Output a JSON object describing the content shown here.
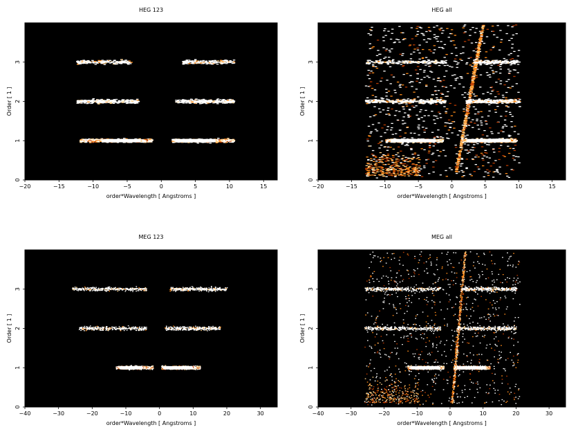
{
  "chart_data": [
    {
      "type": "heatmap",
      "title": "HEG 123",
      "xlabel": "order*Wavelength [ Angstroms ]",
      "ylabel": "Order [ 1 ]",
      "xlim": [
        -20,
        17
      ],
      "ylim": [
        0,
        4
      ],
      "xticks": [
        -20,
        -15,
        -10,
        -5,
        0,
        5,
        10,
        15
      ],
      "yticks": [
        0,
        1,
        2,
        3
      ],
      "colormap": [
        "#000000",
        "#5a0a00",
        "#b83a00",
        "#ff8c1a",
        "#ffd38a",
        "#ffffff"
      ],
      "bands": [
        {
          "order": 1,
          "x_range": [
            -12,
            -1.5
          ],
          "density": "high",
          "peak": [
            -8.5,
            -3
          ]
        },
        {
          "order": 1,
          "x_range": [
            1.5,
            10.5
          ],
          "density": "high",
          "peak": [
            2,
            8
          ]
        },
        {
          "order": 2,
          "x_range": [
            -12.5,
            -3.5
          ],
          "density": "medium"
        },
        {
          "order": 2,
          "x_range": [
            2,
            10.5
          ],
          "density": "medium"
        },
        {
          "order": 3,
          "x_range": [
            -12.5,
            -4.5
          ],
          "density": "low"
        },
        {
          "order": 3,
          "x_range": [
            3,
            10.5
          ],
          "density": "low"
        }
      ]
    },
    {
      "type": "heatmap",
      "title": "HEG all",
      "xlabel": "order*Wavelength [ Angstroms ]",
      "ylabel": "Order [ 1 ]",
      "xlim": [
        -20,
        17
      ],
      "ylim": [
        0,
        4
      ],
      "xticks": [
        -20,
        -15,
        -10,
        -5,
        0,
        5,
        10,
        15
      ],
      "yticks": [
        0,
        1,
        2,
        3
      ],
      "colormap": [
        "#000000",
        "#5a0a00",
        "#b83a00",
        "#ff8c1a",
        "#ffd38a",
        "#ffffff"
      ],
      "bands": [
        {
          "order": 1,
          "x_range": [
            -10,
            -1.5
          ],
          "density": "high"
        },
        {
          "order": 1,
          "x_range": [
            1.5,
            9.5
          ],
          "density": "high"
        },
        {
          "order": 2,
          "x_range": [
            -13,
            -1
          ],
          "density": "medium"
        },
        {
          "order": 2,
          "x_range": [
            2,
            10
          ],
          "density": "medium"
        },
        {
          "order": 3,
          "x_range": [
            -13,
            -1
          ],
          "density": "low"
        },
        {
          "order": 3,
          "x_range": [
            3,
            10
          ],
          "density": "low"
        }
      ],
      "background_region": {
        "x_range": [
          -13,
          10
        ],
        "density": "sparse"
      },
      "streak": {
        "from": [
          0.5,
          0.2
        ],
        "to": [
          4.5,
          3.95
        ]
      }
    },
    {
      "type": "heatmap",
      "title": "MEG 123",
      "xlabel": "order*Wavelength [ Angstroms ]",
      "ylabel": "Order [ 1 ]",
      "xlim": [
        -40,
        35
      ],
      "ylim": [
        0,
        4
      ],
      "xticks": [
        -40,
        -30,
        -20,
        -10,
        0,
        10,
        20,
        30
      ],
      "yticks": [
        0,
        1,
        2,
        3
      ],
      "colormap": [
        "#000000",
        "#5a0a00",
        "#b83a00",
        "#ff8c1a",
        "#ffd38a",
        "#ffffff"
      ],
      "bands": [
        {
          "order": 1,
          "x_range": [
            -13,
            -2
          ],
          "density": "high",
          "peak": [
            -12,
            -5
          ]
        },
        {
          "order": 1,
          "x_range": [
            0.5,
            12
          ],
          "density": "high",
          "peak": [
            1,
            10
          ]
        },
        {
          "order": 2,
          "x_range": [
            -24,
            -4
          ],
          "density": "medium"
        },
        {
          "order": 2,
          "x_range": [
            1.5,
            18
          ],
          "density": "medium"
        },
        {
          "order": 3,
          "x_range": [
            -26,
            -4
          ],
          "density": "medium"
        },
        {
          "order": 3,
          "x_range": [
            3,
            20
          ],
          "density": "medium"
        }
      ]
    },
    {
      "type": "heatmap",
      "title": "MEG all",
      "xlabel": "order*Wavelength [ Angstroms ]",
      "ylabel": "Order [ 1 ]",
      "xlim": [
        -40,
        35
      ],
      "ylim": [
        0,
        4
      ],
      "xticks": [
        -40,
        -30,
        -20,
        -10,
        0,
        10,
        20,
        30
      ],
      "yticks": [
        0,
        1,
        2,
        3
      ],
      "colormap": [
        "#000000",
        "#5a0a00",
        "#b83a00",
        "#ff8c1a",
        "#ffd38a",
        "#ffffff"
      ],
      "bands": [
        {
          "order": 1,
          "x_range": [
            -13,
            -2
          ],
          "density": "high"
        },
        {
          "order": 1,
          "x_range": [
            1,
            12
          ],
          "density": "high"
        },
        {
          "order": 2,
          "x_range": [
            -26,
            -3
          ],
          "density": "medium"
        },
        {
          "order": 2,
          "x_range": [
            2,
            20
          ],
          "density": "medium"
        },
        {
          "order": 3,
          "x_range": [
            -26,
            -3
          ],
          "density": "medium"
        },
        {
          "order": 3,
          "x_range": [
            3,
            20
          ],
          "density": "medium"
        }
      ],
      "background_region": {
        "x_range": [
          -26,
          21
        ],
        "density": "sparse"
      },
      "streak": {
        "from": [
          0.5,
          0.1
        ],
        "to": [
          4.5,
          3.95
        ]
      }
    }
  ]
}
